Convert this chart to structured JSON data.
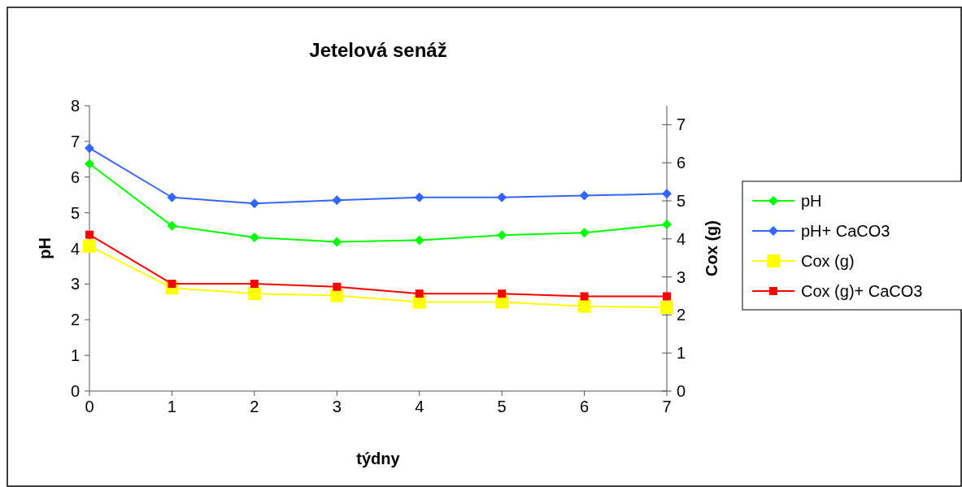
{
  "chart_data": {
    "type": "line",
    "title": "Jetelová senáž",
    "xlabel": "týdny",
    "ylabel": "pH",
    "y2label": "Cox (g)",
    "x": [
      0,
      1,
      2,
      3,
      4,
      5,
      6,
      7
    ],
    "xlim": [
      0,
      7
    ],
    "xticks": [
      0,
      1,
      2,
      3,
      4,
      5,
      6,
      7
    ],
    "ylim": [
      0,
      8
    ],
    "yticks": [
      0,
      1,
      2,
      3,
      4,
      5,
      6,
      7,
      8
    ],
    "y2lim": [
      0,
      7.5
    ],
    "y2ticks": [
      0,
      1,
      2,
      3,
      4,
      5,
      6,
      7
    ],
    "legend": "right",
    "grid": false,
    "series": [
      {
        "name": "pH",
        "color": "#00ff00",
        "marker": "diamond",
        "values": [
          6.37,
          4.63,
          4.31,
          4.18,
          4.23,
          4.37,
          4.44,
          4.67
        ]
      },
      {
        "name": "pH+ CaCO3",
        "color": "#3366ff",
        "marker": "diamond",
        "values": [
          6.81,
          5.43,
          5.26,
          5.35,
          5.43,
          5.43,
          5.48,
          5.53
        ]
      },
      {
        "name": "Cox (g)",
        "color": "#ffff00",
        "marker": "square",
        "axis": "y2",
        "values": [
          3.81,
          2.71,
          2.56,
          2.51,
          2.34,
          2.34,
          2.23,
          2.2
        ]
      },
      {
        "name": "Cox (g)+ CaCO3",
        "color": "#ff0000",
        "marker": "square",
        "axis": "y2",
        "values": [
          4.11,
          2.82,
          2.82,
          2.74,
          2.56,
          2.56,
          2.49,
          2.49
        ]
      }
    ]
  }
}
